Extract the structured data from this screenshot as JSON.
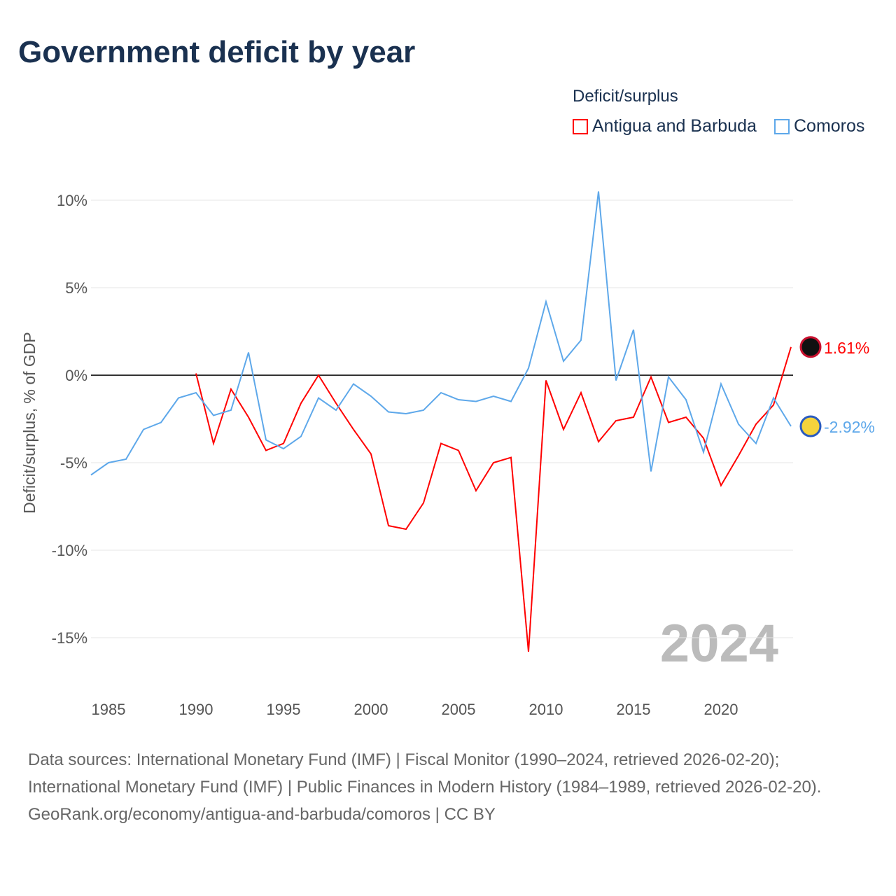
{
  "title": "Government deficit by year",
  "legend": {
    "title": "Deficit/surplus",
    "items": [
      {
        "name": "Antigua and Barbuda",
        "color": "#ff0000"
      },
      {
        "name": "Comoros",
        "color": "#5ea8ea"
      }
    ]
  },
  "chart_data": {
    "type": "line",
    "ylabel": "Deficit/surplus, % of GDP",
    "xlim": [
      1984,
      2024
    ],
    "ylim": [
      -17,
      11
    ],
    "x_ticks": [
      1985,
      1990,
      1995,
      2000,
      2005,
      2010,
      2015,
      2020
    ],
    "y_ticks": [
      {
        "v": 10,
        "label": "10%"
      },
      {
        "v": 5,
        "label": "5%"
      },
      {
        "v": 0,
        "label": "0%"
      },
      {
        "v": -5,
        "label": "-5%"
      },
      {
        "v": -10,
        "label": "-10%"
      },
      {
        "v": -15,
        "label": "-15%"
      }
    ],
    "year_label": "2024",
    "series": [
      {
        "name": "Antigua and Barbuda",
        "color": "#ff0000",
        "start": 1990,
        "end_label": "1.61%",
        "values": [
          0.1,
          -3.9,
          -0.8,
          -2.4,
          -4.3,
          -3.9,
          -1.6,
          0.0,
          -1.6,
          -3.1,
          -4.5,
          -8.6,
          -8.8,
          -7.3,
          -3.9,
          -4.3,
          -6.6,
          -5.0,
          -4.7,
          -15.8,
          -0.3,
          -3.1,
          -1.0,
          -3.8,
          -2.6,
          -2.4,
          -0.1,
          -2.7,
          -2.4,
          -3.6,
          -6.3,
          -4.6,
          -2.8,
          -1.7,
          1.61
        ]
      },
      {
        "name": "Comoros",
        "color": "#5ea8ea",
        "start": 1984,
        "end_label": "-2.92%",
        "values": [
          -5.7,
          -5.0,
          -4.8,
          -3.1,
          -2.7,
          -1.3,
          -1.0,
          -2.3,
          -2.0,
          1.3,
          -3.7,
          -4.2,
          -3.5,
          -1.3,
          -2.0,
          -0.5,
          -1.2,
          -2.1,
          -2.2,
          -2.0,
          -1.0,
          -1.4,
          -1.5,
          -1.2,
          -1.5,
          0.4,
          4.2,
          0.8,
          2.0,
          10.5,
          -0.3,
          2.6,
          -5.5,
          -0.1,
          -1.4,
          -4.4,
          -0.5,
          -2.8,
          -3.9,
          -1.3,
          -2.92
        ]
      }
    ]
  },
  "footer": {
    "line1": "Data sources: International Monetary Fund (IMF) | Fiscal Monitor (1990–2024, retrieved 2026-02-20); International Monetary Fund (IMF) | Public Finances in Modern History (1984–1989, retrieved 2026-02-20).",
    "line2": "GeoRank.org/economy/antigua-and-barbuda/comoros | CC BY"
  }
}
